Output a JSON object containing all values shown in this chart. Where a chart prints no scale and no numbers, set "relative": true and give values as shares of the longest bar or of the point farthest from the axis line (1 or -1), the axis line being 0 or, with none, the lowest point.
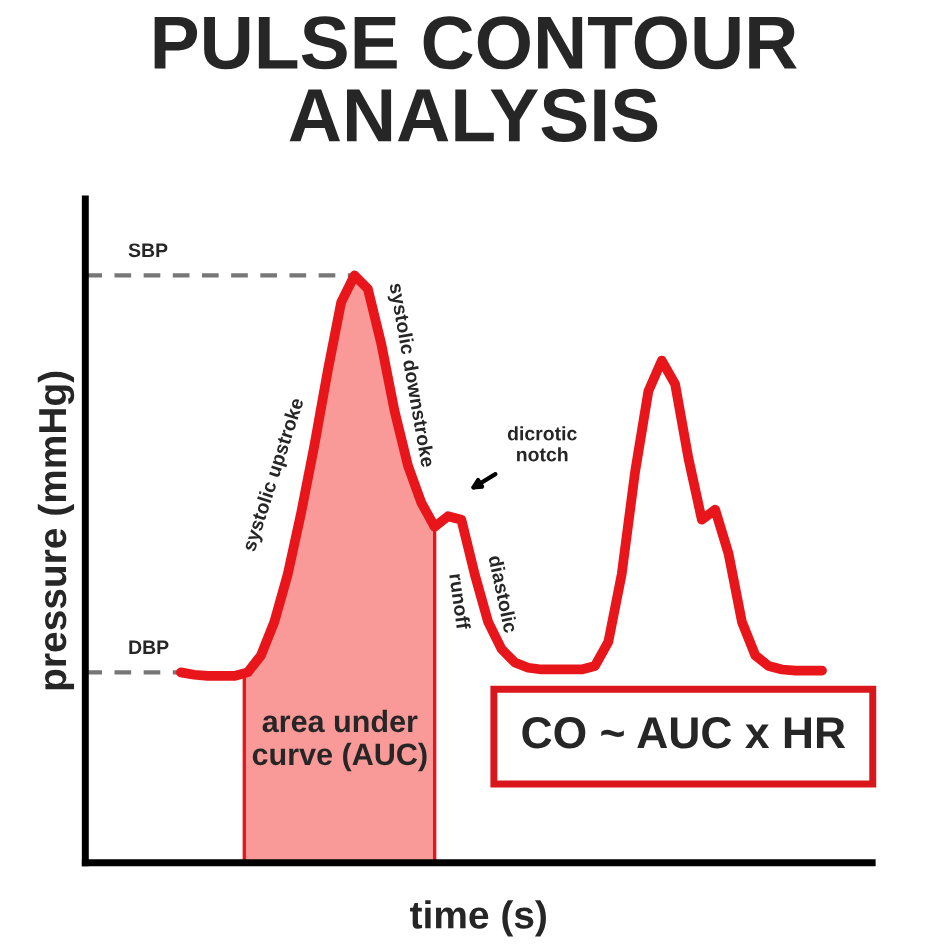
{
  "chart_data": {
    "type": "line",
    "title": "PULSE CONTOUR\nANALYSIS",
    "xlabel": "time (s)",
    "ylabel": "pressure (mmHg)",
    "relative": true,
    "categories": [
      null,
      null,
      null,
      null,
      null,
      null,
      null,
      null,
      null,
      null,
      null,
      null,
      null,
      null,
      null,
      null,
      null,
      null,
      null,
      null,
      null,
      null,
      null,
      null,
      null,
      null,
      null,
      null,
      null,
      null,
      null,
      null,
      null,
      null,
      null,
      null,
      null,
      null,
      null,
      null,
      null,
      null,
      null,
      null,
      null,
      null,
      null,
      null,
      null
    ],
    "series": [
      {
        "color": "#e8161b",
        "values": [
          0.324,
          0.32,
          0.318,
          0.318,
          0.318,
          0.324,
          0.353,
          0.41,
          0.491,
          0.595,
          0.711,
          0.838,
          0.954,
          1.0,
          0.977,
          0.884,
          0.769,
          0.676,
          0.613,
          0.572,
          0.59,
          0.584,
          0.491,
          0.41,
          0.364,
          0.341,
          0.332,
          0.329,
          0.329,
          0.329,
          0.329,
          0.335,
          0.376,
          0.491,
          0.665,
          0.803,
          0.855,
          0.815,
          0.688,
          0.584,
          0.601,
          0.526,
          0.41,
          0.353,
          0.335,
          0.329,
          0.327,
          0.327,
          0.327
        ]
      }
    ],
    "ref_lines": [
      {
        "axis": "y",
        "value": 1.0,
        "label": "SBP",
        "line_style": "dashed",
        "color": "#777777"
      },
      {
        "axis": "y",
        "value": 0.324,
        "label": "DBP",
        "line_style": "dashed",
        "color": "#777777"
      }
    ],
    "annotations": [
      "area under\ncurve (AUC)",
      "systolic upstroke",
      "systolic downstroke",
      "dicrotic\nnotch",
      "runoff",
      "diastolic",
      "CO ~ AUC x HR"
    ]
  }
}
